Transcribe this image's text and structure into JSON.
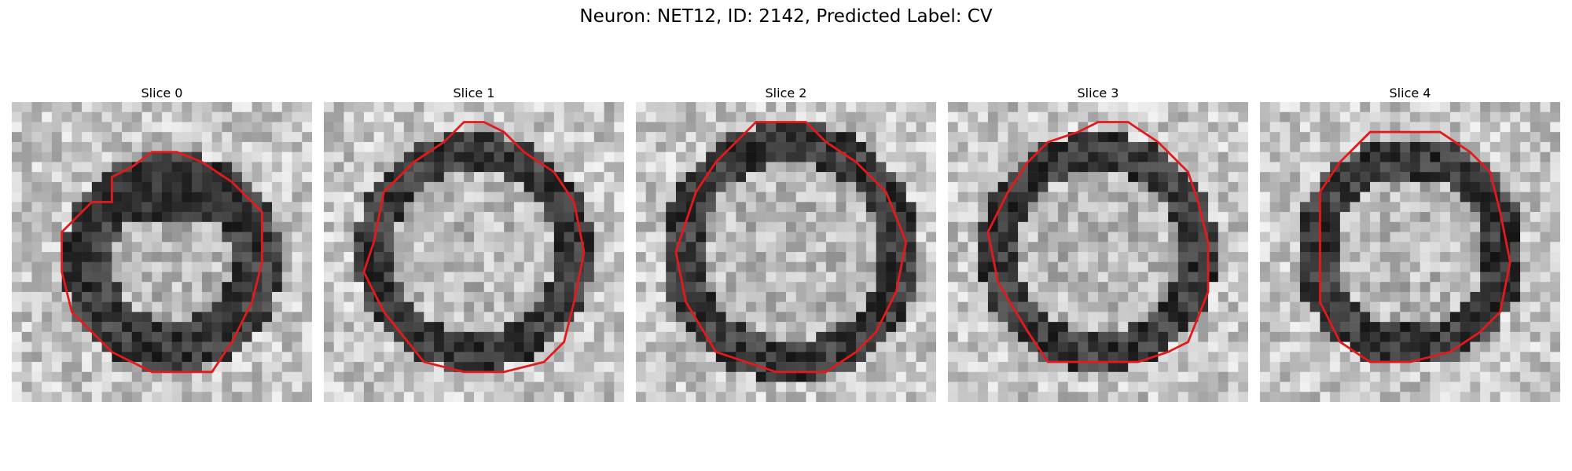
{
  "figure": {
    "title": "Neuron: NET12, ID: 2142, Predicted Label: CV",
    "contour_color": "#e31a1c"
  },
  "panels": [
    {
      "title": "Slice 0",
      "image_desc": "grayscale EM patch, dark membrane ring upper half"
    },
    {
      "title": "Slice 1",
      "image_desc": "grayscale EM patch, bright interior, dark ring"
    },
    {
      "title": "Slice 2",
      "image_desc": "grayscale EM patch, bright left interior"
    },
    {
      "title": "Slice 3",
      "image_desc": "grayscale EM patch, mottled interior"
    },
    {
      "title": "Slice 4",
      "image_desc": "grayscale EM patch, bright center, dark left wall"
    }
  ]
}
